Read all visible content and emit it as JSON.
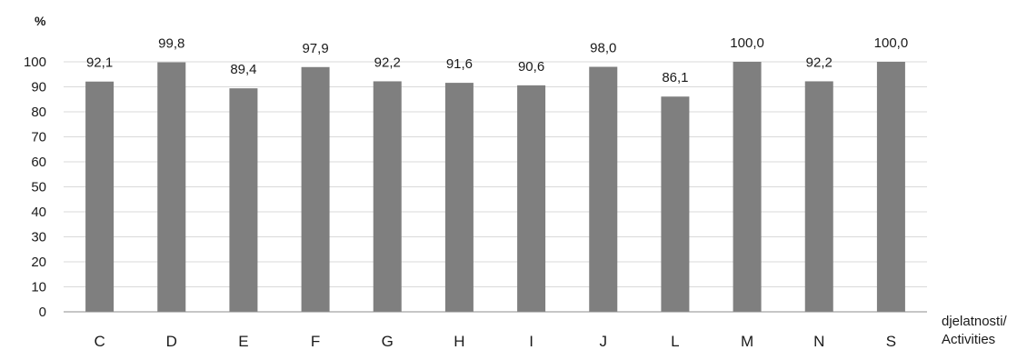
{
  "chart_data": {
    "type": "bar",
    "categories": [
      "C",
      "D",
      "E",
      "F",
      "G",
      "H",
      "I",
      "J",
      "L",
      "M",
      "N",
      "S"
    ],
    "values": [
      92.1,
      99.8,
      89.4,
      97.9,
      92.2,
      91.6,
      90.6,
      98.0,
      86.1,
      100.0,
      92.2,
      100.0
    ],
    "data_labels": [
      "92,1",
      "99,8",
      "89,4",
      "97,9",
      "92,2",
      "91,6",
      "90,6",
      "98,0",
      "86,1",
      "100,0",
      "92,2",
      "100,0"
    ],
    "y_unit": "%",
    "xlabel_lines": [
      "djelatnosti/",
      "Activities"
    ],
    "ylim": [
      0,
      100
    ],
    "yticks": [
      0,
      10,
      20,
      30,
      40,
      50,
      60,
      70,
      80,
      90,
      100
    ],
    "grid": true,
    "legend": "none",
    "bar_color": "#7f7f7f"
  }
}
